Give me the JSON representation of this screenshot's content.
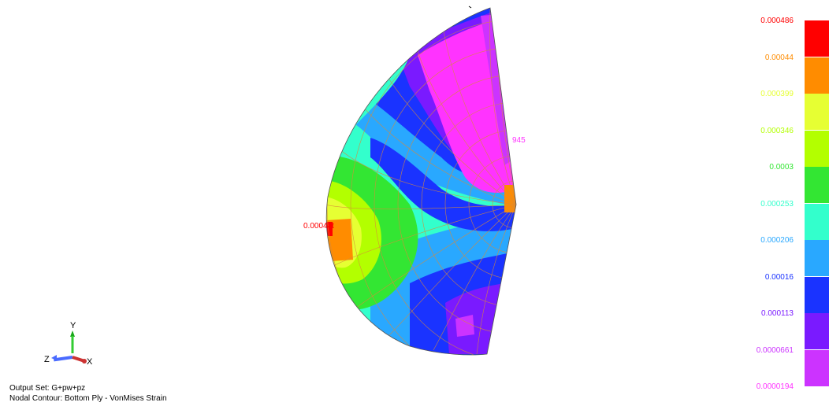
{
  "legend": {
    "levels": [
      {
        "label": "0.000486",
        "color": "#ff0000"
      },
      {
        "label": "0.00044",
        "color": "#ff8c00"
      },
      {
        "label": "0.000399",
        "color": "#e6ff33"
      },
      {
        "label": "0.000346",
        "color": "#b3ff00"
      },
      {
        "label": "0.0003",
        "color": "#33e633"
      },
      {
        "label": "0.000253",
        "color": "#33ffcc"
      },
      {
        "label": "0.000206",
        "color": "#29a8ff"
      },
      {
        "label": "0.00016",
        "color": "#1a33ff"
      },
      {
        "label": "0.000113",
        "color": "#7a1aff"
      },
      {
        "label": "0.0000661",
        "color": "#cc33ff"
      },
      {
        "label": "0.0000194",
        "color": "#ff33ff"
      }
    ]
  },
  "model": {
    "max_label": "0.00048t",
    "min_label": "945"
  },
  "triad": {
    "y_label": "Y",
    "z_label": "Z",
    "x_label": "X"
  },
  "status": {
    "output_set": "Output Set: G+pw+pz",
    "contour": "Nodal Contour: Bottom Ply - VonMises Strain"
  }
}
